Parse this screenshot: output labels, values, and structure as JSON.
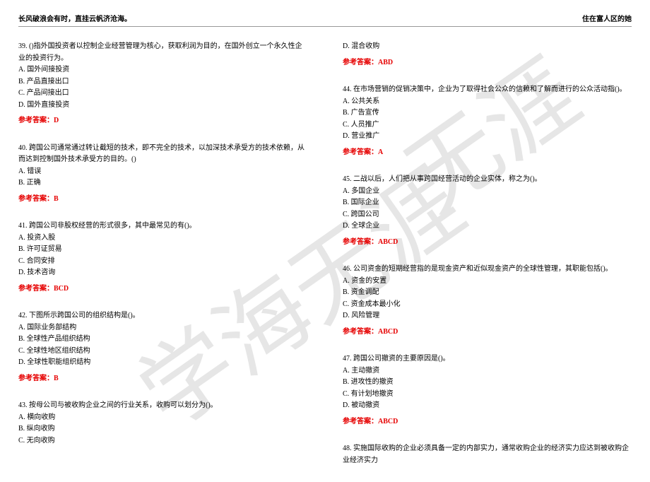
{
  "header": {
    "left": "长风破浪会有时，直挂云帆济沧海。",
    "right": "住在富人区的她"
  },
  "watermark": {
    "text1": "学海无涯",
    "text2": "无涯"
  },
  "left_column": [
    {
      "question": "39. ()指外国投资者以控制企业经营管理为核心，获取利润为目的，在国外创立一个永久性企业的投资行为。",
      "options": [
        "A. 国外间接投资",
        "B. 产品直接出口",
        "C. 产品间接出口",
        "D. 国外直接投资"
      ],
      "answer": "D"
    },
    {
      "question": "40. 跨国公司通常通过转让截短的技术，即不完全的技术，以加深技术承受方的技术依赖，从而达到控制国外技术承受方的目的。()",
      "options": [
        "A. 错误",
        "B. 正确"
      ],
      "answer": "B"
    },
    {
      "question": "41. 跨国公司非股权经营的形式很多，其中最常见的有()。",
      "options": [
        "A. 投资入股",
        "B. 许可证贸易",
        "C. 合同安排",
        "D. 技术咨询"
      ],
      "answer": "BCD"
    },
    {
      "question": "42. 下图所示跨国公司的组织结构是()。",
      "options": [
        "A. 国际业务部结构",
        "B. 全球性产品组织结构",
        "C. 全球性地区组织结构",
        "D. 全球性职能组织结构"
      ],
      "answer": "B"
    },
    {
      "question": "43. 按母公司与被收购企业之间的行业关系，收购可以划分为()。",
      "options": [
        "A. 横向收购",
        "B. 纵向收购",
        "C. 无向收购"
      ],
      "answer": ""
    }
  ],
  "right_column": [
    {
      "question": "",
      "options": [
        "D. 混合收购"
      ],
      "answer": "ABD"
    },
    {
      "question": "44. 在市场营销的促销决策中，企业为了取得社会公众的信赖和了解而进行的公众活动指()。",
      "options": [
        "A. 公共关系",
        "B. 广告宣传",
        "C. 人员推广",
        "D. 营业推广"
      ],
      "answer": "A"
    },
    {
      "question": "45. 二战以后，人们把从事跨国经营活动的企业实体，称之为()。",
      "options": [
        "A. 多国企业",
        "B. 国际企业",
        "C. 跨国公司",
        "D. 全球企业"
      ],
      "answer": "ABCD"
    },
    {
      "question": "46. 公司资金的短期经营指的是现金资产和近似现金资产的全球性管理，其职能包括()。",
      "options": [
        "A. 资金的安置",
        "B. 资金调配",
        "C. 资金成本最小化",
        "D. 风险管理"
      ],
      "answer": "ABCD"
    },
    {
      "question": "47. 跨国公司撤资的主要原因是()。",
      "options": [
        "A. 主动撤资",
        "B. 进攻性的撤资",
        "C. 有计划地撤资",
        "D. 被动撤资"
      ],
      "answer": "ABCD"
    },
    {
      "question": "48. 实施国际收购的企业必须具备一定的内部实力，通常收购企业的经济实力应达到被收购企业经济实力",
      "options": [],
      "answer": ""
    }
  ],
  "answer_label": "参考答案："
}
